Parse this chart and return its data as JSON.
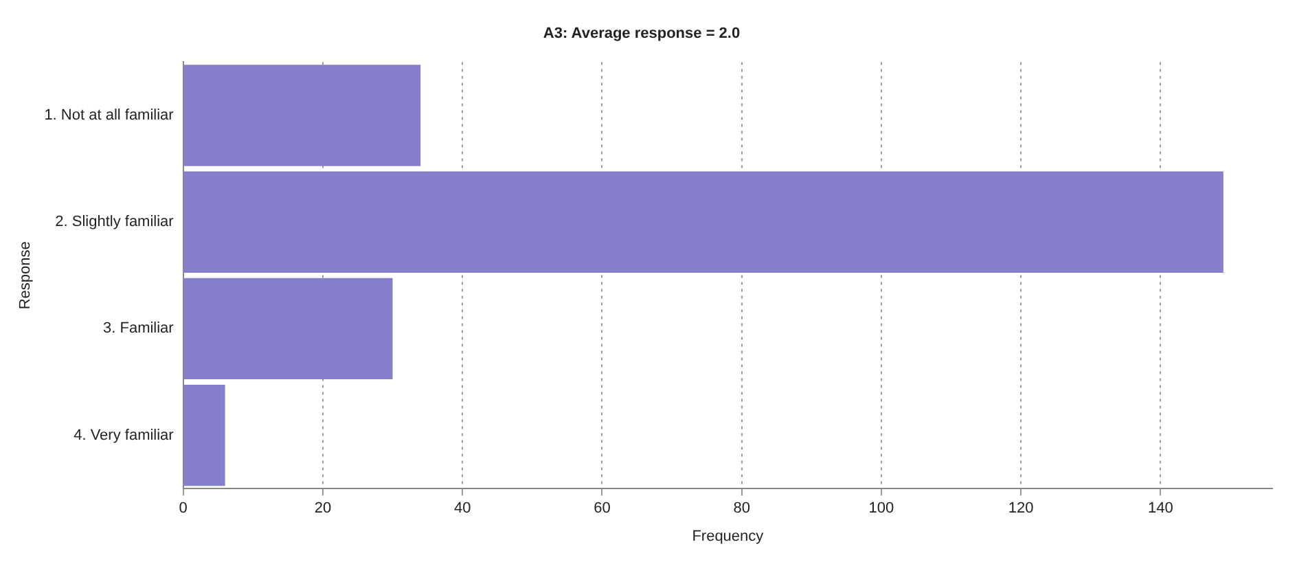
{
  "chart_data": {
    "type": "bar",
    "orientation": "horizontal",
    "title": "A3: Average response = 2.0",
    "xlabel": "Frequency",
    "ylabel": "Response",
    "categories": [
      "1. Not at all familiar",
      "2. Slightly familiar",
      "3. Familiar",
      "4. Very familiar"
    ],
    "values": [
      34,
      149,
      30,
      6
    ],
    "color": "#8680cc",
    "xlim": [
      0,
      156
    ],
    "xticks": [
      0,
      20,
      40,
      60,
      80,
      100,
      120,
      140
    ],
    "grid": "x",
    "legend": false
  }
}
